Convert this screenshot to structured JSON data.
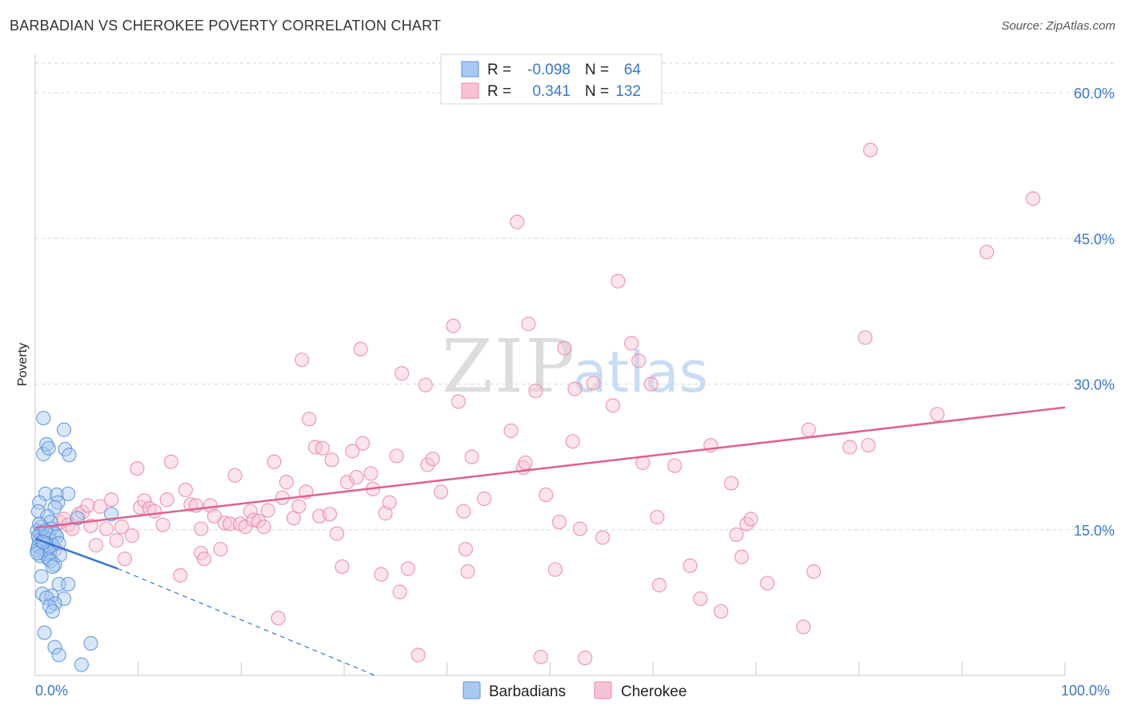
{
  "header": {
    "title": "BARBADIAN VS CHEROKEE POVERTY CORRELATION CHART",
    "source": "Source: ZipAtlas.com"
  },
  "watermark": {
    "zip": "ZIP",
    "atlas": "atlas"
  },
  "stats_legend": {
    "rows": [
      {
        "r_label": "R =",
        "r_value": "-0.098",
        "n_label": "N =",
        "n_value": "64",
        "color": "#a9c8f2"
      },
      {
        "r_label": "R =",
        "r_value": "0.341",
        "n_label": "N =",
        "n_value": "132",
        "color": "#f7b6c9"
      }
    ]
  },
  "colors": {
    "barbadian_fill": "#a9c8f2",
    "barbadian_stroke": "#5b93db",
    "barbadian_line": "#3574d4",
    "cherokee_fill": "#f7c3d2",
    "cherokee_stroke": "#e98aa8",
    "cherokee_line": "#e0608c",
    "grid": "#d6d6d6",
    "tick_label": "#3a78c9"
  },
  "chart_data": {
    "type": "scatter",
    "title": "BARBADIAN VS CHEROKEE POVERTY CORRELATION CHART",
    "xlabel": "",
    "ylabel": "Poverty",
    "xlim": [
      0,
      100
    ],
    "ylim": [
      0,
      63
    ],
    "x_tick_labels": [
      "0.0%",
      "100.0%"
    ],
    "y_ticks": [
      15,
      30,
      45,
      60
    ],
    "y_tick_labels": [
      "15.0%",
      "30.0%",
      "45.0%",
      "60.0%"
    ],
    "grid": true,
    "legend": [
      "Barbadians",
      "Cherokee"
    ],
    "series": [
      {
        "name": "Barbadians",
        "trend": {
          "x0": 0,
          "y0": 14.1,
          "x1": 8,
          "y1": 11.0,
          "dash_to_x": 33,
          "dash_to_y": 0
        },
        "points": [
          [
            0.8,
            26.5
          ],
          [
            0.8,
            22.8
          ],
          [
            1.1,
            23.8
          ],
          [
            1.3,
            23.4
          ],
          [
            2.8,
            25.3
          ],
          [
            2.9,
            23.3
          ],
          [
            3.3,
            22.7
          ],
          [
            1.0,
            18.7
          ],
          [
            2.1,
            18.6
          ],
          [
            3.2,
            18.7
          ],
          [
            0.4,
            17.8
          ],
          [
            2.2,
            17.8
          ],
          [
            1.9,
            17.3
          ],
          [
            0.3,
            16.9
          ],
          [
            1.2,
            16.4
          ],
          [
            4.1,
            16.2
          ],
          [
            7.4,
            16.6
          ],
          [
            1.5,
            15.8
          ],
          [
            0.6,
            15.3
          ],
          [
            1.6,
            15.1
          ],
          [
            0.2,
            14.9
          ],
          [
            0.5,
            14.7
          ],
          [
            1.3,
            14.5
          ],
          [
            1.9,
            14.6
          ],
          [
            0.3,
            14.3
          ],
          [
            0.9,
            14.2
          ],
          [
            1.4,
            14.0
          ],
          [
            2.1,
            14.3
          ],
          [
            0.4,
            13.9
          ],
          [
            0.7,
            13.8
          ],
          [
            1.0,
            13.5
          ],
          [
            0.3,
            13.3
          ],
          [
            1.7,
            13.4
          ],
          [
            2.3,
            13.6
          ],
          [
            0.6,
            13.1
          ],
          [
            0.2,
            12.9
          ],
          [
            1.1,
            12.8
          ],
          [
            0.9,
            12.5
          ],
          [
            1.4,
            12.7
          ],
          [
            0.5,
            12.3
          ],
          [
            2.4,
            12.4
          ],
          [
            1.3,
            12.0
          ],
          [
            1.5,
            11.8
          ],
          [
            1.9,
            11.4
          ],
          [
            1.7,
            11.2
          ],
          [
            0.6,
            10.2
          ],
          [
            2.3,
            9.4
          ],
          [
            3.2,
            9.4
          ],
          [
            0.7,
            8.4
          ],
          [
            1.6,
            8.2
          ],
          [
            1.1,
            8.0
          ],
          [
            2.8,
            7.9
          ],
          [
            1.9,
            7.4
          ],
          [
            1.4,
            7.1
          ],
          [
            1.7,
            6.6
          ],
          [
            0.9,
            4.4
          ],
          [
            1.9,
            2.9
          ],
          [
            5.4,
            3.3
          ],
          [
            2.3,
            2.1
          ],
          [
            4.5,
            1.1
          ],
          [
            0.4,
            15.6
          ],
          [
            1.0,
            14.9
          ],
          [
            0.2,
            12.6
          ],
          [
            0.8,
            13.7
          ]
        ]
      },
      {
        "name": "Cherokee",
        "trend": {
          "x0": 0,
          "y0": 15.2,
          "x1": 100,
          "y1": 27.6
        },
        "points": [
          [
            2.0,
            13.0
          ],
          [
            2.4,
            15.8
          ],
          [
            2.8,
            16.1
          ],
          [
            3.2,
            15.5
          ],
          [
            3.6,
            15.1
          ],
          [
            4.2,
            16.6
          ],
          [
            4.6,
            16.8
          ],
          [
            5.1,
            17.5
          ],
          [
            5.4,
            15.4
          ],
          [
            5.9,
            13.4
          ],
          [
            6.3,
            17.4
          ],
          [
            6.9,
            15.1
          ],
          [
            7.4,
            18.1
          ],
          [
            7.9,
            13.9
          ],
          [
            8.4,
            15.3
          ],
          [
            8.7,
            12.0
          ],
          [
            9.4,
            14.4
          ],
          [
            9.9,
            21.3
          ],
          [
            10.2,
            17.3
          ],
          [
            10.6,
            18.0
          ],
          [
            11.1,
            17.2
          ],
          [
            11.6,
            16.9
          ],
          [
            12.4,
            15.5
          ],
          [
            12.8,
            18.1
          ],
          [
            13.2,
            22.0
          ],
          [
            14.1,
            10.3
          ],
          [
            14.6,
            19.1
          ],
          [
            15.1,
            17.6
          ],
          [
            15.6,
            17.5
          ],
          [
            16.1,
            15.1
          ],
          [
            16.1,
            12.6
          ],
          [
            16.4,
            12.0
          ],
          [
            17.0,
            17.5
          ],
          [
            17.4,
            16.4
          ],
          [
            18.0,
            13.0
          ],
          [
            18.4,
            15.7
          ],
          [
            18.9,
            15.6
          ],
          [
            19.4,
            20.6
          ],
          [
            19.9,
            15.6
          ],
          [
            20.4,
            15.3
          ],
          [
            20.9,
            16.9
          ],
          [
            21.2,
            16.0
          ],
          [
            21.7,
            15.9
          ],
          [
            22.2,
            15.3
          ],
          [
            22.6,
            17.0
          ],
          [
            23.2,
            22.0
          ],
          [
            23.6,
            5.9
          ],
          [
            24.0,
            18.3
          ],
          [
            24.4,
            19.9
          ],
          [
            25.1,
            16.2
          ],
          [
            25.6,
            17.4
          ],
          [
            25.9,
            32.5
          ],
          [
            26.3,
            18.9
          ],
          [
            26.6,
            26.4
          ],
          [
            27.2,
            23.5
          ],
          [
            27.6,
            16.4
          ],
          [
            27.9,
            23.4
          ],
          [
            28.6,
            16.6
          ],
          [
            28.8,
            22.2
          ],
          [
            29.3,
            14.6
          ],
          [
            29.8,
            11.2
          ],
          [
            30.3,
            19.9
          ],
          [
            30.8,
            23.1
          ],
          [
            31.2,
            20.4
          ],
          [
            31.6,
            33.6
          ],
          [
            31.8,
            23.9
          ],
          [
            32.6,
            20.8
          ],
          [
            32.8,
            19.2
          ],
          [
            33.6,
            10.4
          ],
          [
            34.0,
            16.7
          ],
          [
            34.4,
            17.8
          ],
          [
            35.1,
            22.6
          ],
          [
            35.4,
            8.6
          ],
          [
            35.6,
            31.1
          ],
          [
            36.2,
            11.0
          ],
          [
            37.2,
            2.1
          ],
          [
            37.9,
            29.9
          ],
          [
            38.1,
            21.7
          ],
          [
            38.6,
            22.3
          ],
          [
            39.4,
            18.9
          ],
          [
            40.6,
            36.0
          ],
          [
            41.1,
            28.2
          ],
          [
            41.6,
            16.9
          ],
          [
            41.8,
            13.0
          ],
          [
            42.0,
            10.7
          ],
          [
            42.4,
            22.5
          ],
          [
            43.6,
            18.2
          ],
          [
            46.2,
            25.2
          ],
          [
            47.4,
            21.4
          ],
          [
            47.6,
            21.9
          ],
          [
            47.9,
            36.2
          ],
          [
            48.6,
            29.3
          ],
          [
            49.1,
            1.9
          ],
          [
            49.6,
            18.6
          ],
          [
            50.5,
            10.9
          ],
          [
            50.9,
            15.8
          ],
          [
            51.4,
            33.7
          ],
          [
            52.2,
            24.1
          ],
          [
            52.4,
            29.5
          ],
          [
            52.9,
            15.1
          ],
          [
            53.4,
            1.8
          ],
          [
            54.2,
            30.1
          ],
          [
            55.1,
            14.2
          ],
          [
            56.1,
            27.8
          ],
          [
            56.6,
            40.6
          ],
          [
            57.9,
            34.2
          ],
          [
            58.6,
            32.4
          ],
          [
            59.0,
            21.9
          ],
          [
            59.8,
            30.0
          ],
          [
            60.4,
            16.3
          ],
          [
            60.6,
            9.3
          ],
          [
            62.1,
            21.6
          ],
          [
            63.6,
            11.3
          ],
          [
            64.6,
            7.9
          ],
          [
            65.6,
            23.7
          ],
          [
            66.6,
            6.6
          ],
          [
            67.6,
            19.8
          ],
          [
            68.1,
            14.5
          ],
          [
            68.6,
            12.2
          ],
          [
            69.1,
            15.6
          ],
          [
            69.5,
            16.1
          ],
          [
            71.1,
            9.5
          ],
          [
            74.6,
            5.0
          ],
          [
            75.1,
            25.3
          ],
          [
            75.6,
            10.7
          ],
          [
            79.1,
            23.5
          ],
          [
            80.6,
            34.8
          ],
          [
            80.9,
            23.7
          ],
          [
            81.1,
            54.1
          ],
          [
            87.6,
            26.9
          ],
          [
            92.4,
            43.6
          ],
          [
            96.9,
            49.1
          ],
          [
            46.8,
            46.7
          ]
        ]
      }
    ]
  },
  "bottom_legend": {
    "items": [
      "Barbadians",
      "Cherokee"
    ]
  }
}
